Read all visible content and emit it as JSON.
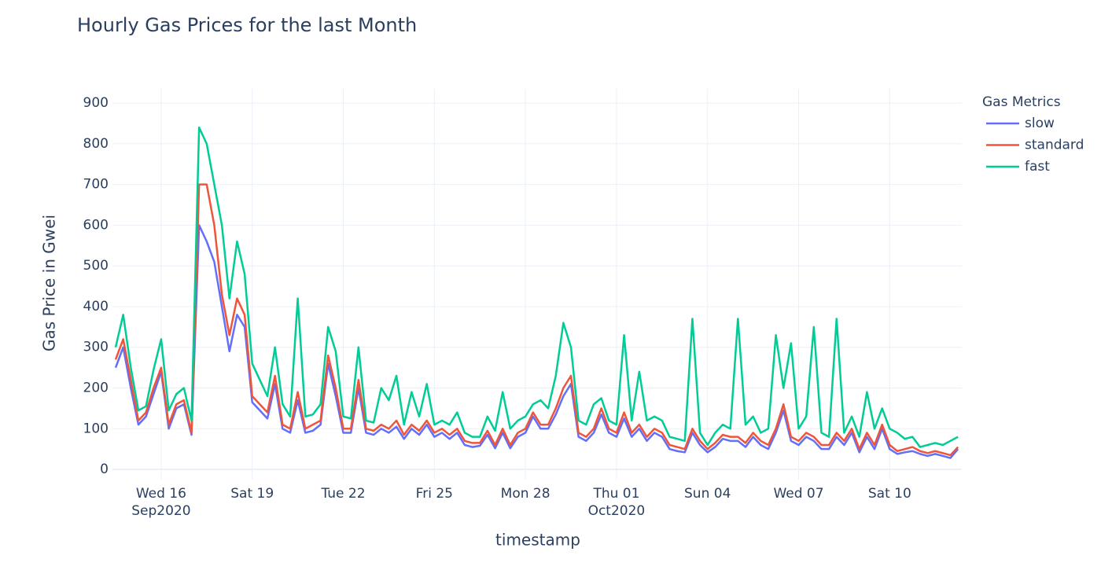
{
  "chart_data": {
    "type": "line",
    "title": "Hourly Gas Prices for the last Month",
    "x_label": "timestamp",
    "y_label": "Gas Price in Gwei",
    "legend_title": "Gas Metrics",
    "legend_position": "right",
    "grid": true,
    "xlim": [
      "2020-09-14 09:30",
      "2020-10-12 09:00"
    ],
    "ylim": [
      -25,
      935
    ],
    "yticks": [
      0,
      100,
      200,
      300,
      400,
      500,
      600,
      700,
      800,
      900
    ],
    "xticks": [
      {
        "value": "2020-09-16 00:00",
        "label": "Wed 16",
        "sublabel": "Sep2020"
      },
      {
        "value": "2020-09-19 00:00",
        "label": "Sat 19"
      },
      {
        "value": "2020-09-22 00:00",
        "label": "Tue 22"
      },
      {
        "value": "2020-09-25 00:00",
        "label": "Fri 25"
      },
      {
        "value": "2020-09-28 00:00",
        "label": "Mon 28"
      },
      {
        "value": "2020-10-01 00:00",
        "label": "Thu 01",
        "sublabel": "Oct2020"
      },
      {
        "value": "2020-10-04 00:00",
        "label": "Sun 04"
      },
      {
        "value": "2020-10-07 00:00",
        "label": "Wed 07"
      },
      {
        "value": "2020-10-10 00:00",
        "label": "Sat 10"
      }
    ],
    "x": [
      "2020-09-14 12:00",
      "2020-09-14 18:00",
      "2020-09-15 00:00",
      "2020-09-15 06:00",
      "2020-09-15 12:00",
      "2020-09-15 18:00",
      "2020-09-16 00:00",
      "2020-09-16 06:00",
      "2020-09-16 12:00",
      "2020-09-16 18:00",
      "2020-09-17 00:00",
      "2020-09-17 06:00",
      "2020-09-17 12:00",
      "2020-09-17 18:00",
      "2020-09-18 00:00",
      "2020-09-18 06:00",
      "2020-09-18 12:00",
      "2020-09-18 18:00",
      "2020-09-19 00:00",
      "2020-09-19 06:00",
      "2020-09-19 12:00",
      "2020-09-19 18:00",
      "2020-09-20 00:00",
      "2020-09-20 06:00",
      "2020-09-20 12:00",
      "2020-09-20 18:00",
      "2020-09-21 00:00",
      "2020-09-21 06:00",
      "2020-09-21 12:00",
      "2020-09-21 18:00",
      "2020-09-22 00:00",
      "2020-09-22 06:00",
      "2020-09-22 12:00",
      "2020-09-22 18:00",
      "2020-09-23 00:00",
      "2020-09-23 06:00",
      "2020-09-23 12:00",
      "2020-09-23 18:00",
      "2020-09-24 00:00",
      "2020-09-24 06:00",
      "2020-09-24 12:00",
      "2020-09-24 18:00",
      "2020-09-25 00:00",
      "2020-09-25 06:00",
      "2020-09-25 12:00",
      "2020-09-25 18:00",
      "2020-09-26 00:00",
      "2020-09-26 06:00",
      "2020-09-26 12:00",
      "2020-09-26 18:00",
      "2020-09-27 00:00",
      "2020-09-27 06:00",
      "2020-09-27 12:00",
      "2020-09-27 18:00",
      "2020-09-28 00:00",
      "2020-09-28 06:00",
      "2020-09-28 12:00",
      "2020-09-28 18:00",
      "2020-09-29 00:00",
      "2020-09-29 06:00",
      "2020-09-29 12:00",
      "2020-09-29 18:00",
      "2020-09-30 00:00",
      "2020-09-30 06:00",
      "2020-09-30 12:00",
      "2020-09-30 18:00",
      "2020-10-01 00:00",
      "2020-10-01 06:00",
      "2020-10-01 12:00",
      "2020-10-01 18:00",
      "2020-10-02 00:00",
      "2020-10-02 06:00",
      "2020-10-02 12:00",
      "2020-10-02 18:00",
      "2020-10-03 00:00",
      "2020-10-03 06:00",
      "2020-10-03 12:00",
      "2020-10-03 18:00",
      "2020-10-04 00:00",
      "2020-10-04 06:00",
      "2020-10-04 12:00",
      "2020-10-04 18:00",
      "2020-10-05 00:00",
      "2020-10-05 06:00",
      "2020-10-05 12:00",
      "2020-10-05 18:00",
      "2020-10-06 00:00",
      "2020-10-06 06:00",
      "2020-10-06 12:00",
      "2020-10-06 18:00",
      "2020-10-07 00:00",
      "2020-10-07 06:00",
      "2020-10-07 12:00",
      "2020-10-07 18:00",
      "2020-10-08 00:00",
      "2020-10-08 06:00",
      "2020-10-08 12:00",
      "2020-10-08 18:00",
      "2020-10-09 00:00",
      "2020-10-09 06:00",
      "2020-10-09 12:00",
      "2020-10-09 18:00",
      "2020-10-10 00:00",
      "2020-10-10 06:00",
      "2020-10-10 12:00",
      "2020-10-10 18:00",
      "2020-10-11 00:00",
      "2020-10-11 06:00",
      "2020-10-11 12:00",
      "2020-10-11 18:00",
      "2020-10-12 00:00",
      "2020-10-12 06:00"
    ],
    "series": [
      {
        "name": "slow",
        "color": "#636efa",
        "values": [
          250,
          300,
          200,
          110,
          130,
          185,
          240,
          100,
          150,
          160,
          85,
          600,
          560,
          510,
          400,
          290,
          380,
          350,
          165,
          145,
          125,
          210,
          100,
          90,
          170,
          90,
          95,
          110,
          260,
          180,
          90,
          90,
          200,
          90,
          85,
          100,
          90,
          105,
          75,
          100,
          85,
          110,
          80,
          90,
          75,
          90,
          60,
          55,
          58,
          85,
          52,
          90,
          52,
          80,
          90,
          130,
          100,
          100,
          135,
          180,
          210,
          80,
          70,
          90,
          135,
          90,
          80,
          125,
          80,
          100,
          70,
          90,
          80,
          50,
          45,
          42,
          90,
          60,
          42,
          55,
          75,
          70,
          70,
          55,
          80,
          60,
          50,
          90,
          145,
          70,
          60,
          80,
          70,
          50,
          50,
          80,
          60,
          90,
          42,
          80,
          50,
          100,
          50,
          38,
          42,
          45,
          38,
          33,
          38,
          33,
          28,
          50
        ]
      },
      {
        "name": "standard",
        "color": "#ef553b",
        "values": [
          270,
          320,
          220,
          120,
          140,
          200,
          250,
          110,
          160,
          170,
          90,
          700,
          700,
          600,
          430,
          330,
          420,
          380,
          180,
          160,
          140,
          230,
          110,
          100,
          190,
          100,
          110,
          120,
          280,
          200,
          100,
          100,
          220,
          100,
          95,
          110,
          100,
          120,
          85,
          110,
          95,
          120,
          90,
          100,
          85,
          100,
          70,
          65,
          65,
          95,
          60,
          100,
          60,
          90,
          100,
          140,
          110,
          110,
          150,
          200,
          230,
          90,
          80,
          100,
          150,
          100,
          90,
          140,
          90,
          110,
          80,
          100,
          90,
          60,
          55,
          50,
          100,
          70,
          50,
          65,
          85,
          80,
          80,
          65,
          90,
          70,
          60,
          100,
          160,
          80,
          70,
          90,
          80,
          60,
          60,
          90,
          70,
          100,
          50,
          90,
          60,
          110,
          60,
          45,
          50,
          55,
          45,
          40,
          45,
          40,
          35,
          55
        ]
      },
      {
        "name": "fast",
        "color": "#00cc96",
        "values": [
          300,
          380,
          250,
          145,
          155,
          245,
          320,
          145,
          185,
          200,
          120,
          840,
          800,
          700,
          600,
          420,
          560,
          480,
          260,
          220,
          180,
          300,
          160,
          130,
          420,
          130,
          135,
          160,
          350,
          290,
          130,
          125,
          300,
          120,
          115,
          200,
          170,
          230,
          110,
          190,
          130,
          210,
          110,
          120,
          110,
          140,
          90,
          80,
          80,
          130,
          95,
          190,
          100,
          120,
          130,
          160,
          170,
          150,
          230,
          360,
          300,
          120,
          110,
          160,
          175,
          120,
          110,
          330,
          120,
          240,
          120,
          130,
          120,
          80,
          75,
          70,
          370,
          90,
          60,
          90,
          110,
          100,
          370,
          110,
          130,
          90,
          100,
          330,
          200,
          310,
          100,
          130,
          350,
          90,
          80,
          370,
          90,
          130,
          80,
          190,
          100,
          150,
          100,
          90,
          75,
          80,
          55,
          60,
          65,
          60,
          70,
          80
        ]
      }
    ]
  }
}
